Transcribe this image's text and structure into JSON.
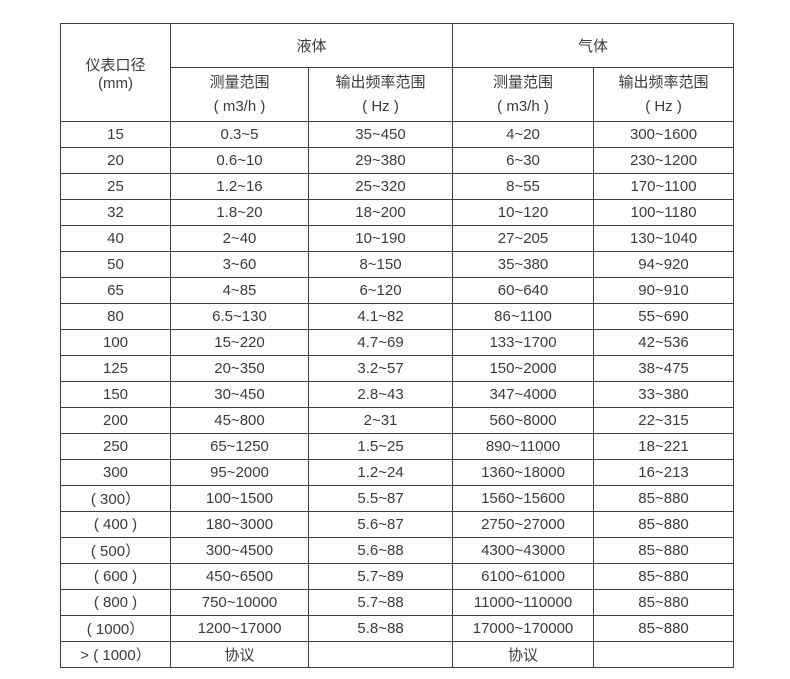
{
  "table": {
    "col1_header": {
      "line1": "仪表口径",
      "line2": "(mm)"
    },
    "groups": [
      {
        "label": "液体"
      },
      {
        "label": "气体"
      }
    ],
    "subheaders": [
      {
        "line1": "测量范围",
        "line2": "( m3/h )"
      },
      {
        "line1": "输出频率范围",
        "line2": "( Hz )"
      },
      {
        "line1": "测量范围",
        "line2": "( m3/h )"
      },
      {
        "line1": "输出频率范围",
        "line2": "( Hz )"
      }
    ],
    "rows": [
      [
        "15",
        "0.3~5",
        "35~450",
        "4~20",
        "300~1600"
      ],
      [
        "20",
        "0.6~10",
        "29~380",
        "6~30",
        "230~1200"
      ],
      [
        "25",
        "1.2~16",
        "25~320",
        "8~55",
        "170~1100"
      ],
      [
        "32",
        "1.8~20",
        "18~200",
        "10~120",
        "100~1180"
      ],
      [
        "40",
        "2~40",
        "10~190",
        "27~205",
        "130~1040"
      ],
      [
        "50",
        "3~60",
        "8~150",
        "35~380",
        "94~920"
      ],
      [
        "65",
        "4~85",
        "6~120",
        "60~640",
        "90~910"
      ],
      [
        "80",
        "6.5~130",
        "4.1~82",
        "86~1100",
        "55~690"
      ],
      [
        "100",
        "15~220",
        "4.7~69",
        "133~1700",
        "42~536"
      ],
      [
        "125",
        "20~350",
        "3.2~57",
        "150~2000",
        "38~475"
      ],
      [
        "150",
        "30~450",
        "2.8~43",
        "347~4000",
        "33~380"
      ],
      [
        "200",
        "45~800",
        "2~31",
        "560~8000",
        "22~315"
      ],
      [
        "250",
        "65~1250",
        "1.5~25",
        "890~11000",
        "18~221"
      ],
      [
        "300",
        "95~2000",
        "1.2~24",
        "1360~18000",
        "16~213"
      ],
      [
        "( 300）",
        "100~1500",
        "5.5~87",
        "1560~15600",
        "85~880"
      ],
      [
        "( 400 )",
        "180~3000",
        "5.6~87",
        "2750~27000",
        "85~880"
      ],
      [
        "( 500）",
        "300~4500",
        "5.6~88",
        "4300~43000",
        "85~880"
      ],
      [
        "( 600 )",
        "450~6500",
        "5.7~89",
        "6100~61000",
        "85~880"
      ],
      [
        "( 800 )",
        "750~10000",
        "5.7~88",
        "11000~110000",
        "85~880"
      ],
      [
        "( 1000）",
        "1200~17000",
        "5.8~88",
        "17000~170000",
        "85~880"
      ],
      [
        "> ( 1000）",
        "协议",
        "",
        "协议",
        ""
      ]
    ],
    "colors": {
      "border": "#3f3f3f",
      "text": "#3b3b3b",
      "background": "#ffffff"
    }
  }
}
